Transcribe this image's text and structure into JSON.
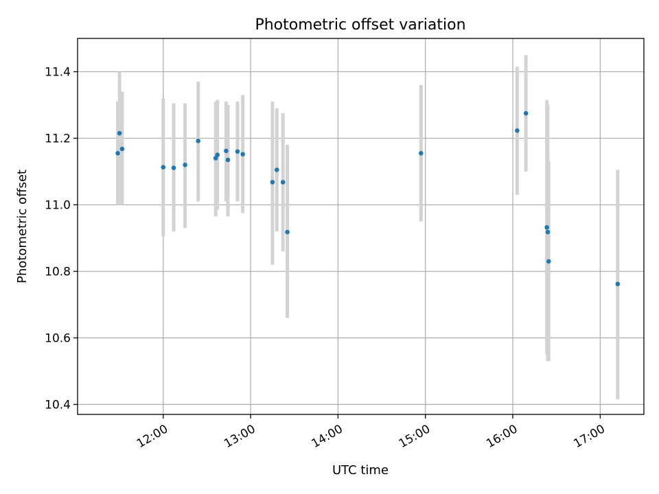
{
  "colors": {
    "points": "#1f77b4",
    "errorbars": "#d3d3d3",
    "grid": "#b0b0b0"
  },
  "chart_data": {
    "type": "scatter",
    "title": "Photometric offset variation",
    "xlabel": "UTC time",
    "ylabel": "Photometric offset",
    "grid": true,
    "x_unit": "hours (UTC)",
    "xlim": [
      11.02,
      17.5
    ],
    "ylim": [
      10.37,
      11.5
    ],
    "xticks": [
      {
        "value": 12,
        "label": "12:00"
      },
      {
        "value": 13,
        "label": "13:00"
      },
      {
        "value": 14,
        "label": "14:00"
      },
      {
        "value": 15,
        "label": "15:00"
      },
      {
        "value": 16,
        "label": "16:00"
      },
      {
        "value": 17,
        "label": "17:00"
      }
    ],
    "yticks": [
      {
        "value": 10.4,
        "label": "10.4"
      },
      {
        "value": 10.6,
        "label": "10.6"
      },
      {
        "value": 10.8,
        "label": "10.8"
      },
      {
        "value": 11.0,
        "label": "11.0"
      },
      {
        "value": 11.2,
        "label": "11.2"
      },
      {
        "value": 11.4,
        "label": "11.4"
      }
    ],
    "series": [
      {
        "name": "offset",
        "points": [
          {
            "x": 11.48,
            "y": 11.155,
            "ymin": 11.0,
            "ymax": 11.31
          },
          {
            "x": 11.5,
            "y": 11.215,
            "ymin": 11.0,
            "ymax": 11.4
          },
          {
            "x": 11.53,
            "y": 11.168,
            "ymin": 11.0,
            "ymax": 11.34
          },
          {
            "x": 12.0,
            "y": 11.113,
            "ymin": 10.905,
            "ymax": 11.32
          },
          {
            "x": 12.12,
            "y": 11.111,
            "ymin": 10.92,
            "ymax": 11.305
          },
          {
            "x": 12.25,
            "y": 11.12,
            "ymin": 10.93,
            "ymax": 11.305
          },
          {
            "x": 12.4,
            "y": 11.192,
            "ymin": 11.01,
            "ymax": 11.37
          },
          {
            "x": 12.6,
            "y": 11.14,
            "ymin": 10.965,
            "ymax": 11.31
          },
          {
            "x": 12.62,
            "y": 11.15,
            "ymin": 10.985,
            "ymax": 11.315
          },
          {
            "x": 12.72,
            "y": 11.162,
            "ymin": 11.01,
            "ymax": 11.31
          },
          {
            "x": 12.74,
            "y": 11.135,
            "ymin": 10.965,
            "ymax": 11.3
          },
          {
            "x": 12.85,
            "y": 11.16,
            "ymin": 11.01,
            "ymax": 11.31
          },
          {
            "x": 12.91,
            "y": 11.152,
            "ymin": 10.975,
            "ymax": 11.33
          },
          {
            "x": 13.25,
            "y": 11.068,
            "ymin": 10.82,
            "ymax": 11.31
          },
          {
            "x": 13.3,
            "y": 11.105,
            "ymin": 10.92,
            "ymax": 11.29
          },
          {
            "x": 13.37,
            "y": 11.068,
            "ymin": 10.86,
            "ymax": 11.275
          },
          {
            "x": 13.42,
            "y": 10.918,
            "ymin": 10.66,
            "ymax": 11.18
          },
          {
            "x": 14.95,
            "y": 11.155,
            "ymin": 10.95,
            "ymax": 11.36
          },
          {
            "x": 16.05,
            "y": 11.223,
            "ymin": 11.03,
            "ymax": 11.415
          },
          {
            "x": 16.15,
            "y": 11.275,
            "ymin": 11.1,
            "ymax": 11.45
          },
          {
            "x": 16.39,
            "y": 10.932,
            "ymin": 10.55,
            "ymax": 11.315
          },
          {
            "x": 16.4,
            "y": 10.918,
            "ymin": 10.53,
            "ymax": 11.3
          },
          {
            "x": 16.41,
            "y": 10.83,
            "ymin": 10.53,
            "ymax": 11.13
          },
          {
            "x": 17.2,
            "y": 10.762,
            "ymin": 10.415,
            "ymax": 11.105
          }
        ]
      }
    ]
  }
}
